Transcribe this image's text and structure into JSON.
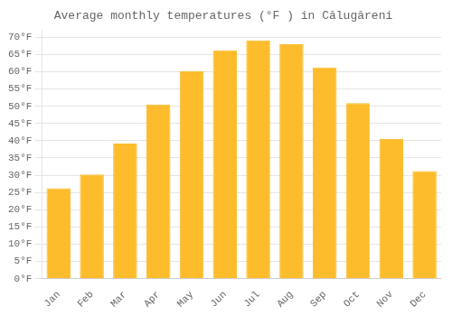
{
  "chart_data": {
    "type": "bar",
    "title": "Average monthly temperatures (°F ) in Călugăreni",
    "categories": [
      "Jan",
      "Feb",
      "Mar",
      "Apr",
      "May",
      "Jun",
      "Jul",
      "Aug",
      "Sep",
      "Oct",
      "Nov",
      "Dec"
    ],
    "values": [
      26.2,
      30.2,
      39.2,
      50.5,
      60.1,
      66.2,
      69.1,
      68.0,
      61.2,
      50.9,
      40.5,
      31.2
    ],
    "color": "#FDBC2C",
    "ylim": [
      0,
      72
    ],
    "yticks": [
      {
        "value": 0,
        "label": "0°F"
      },
      {
        "value": 5,
        "label": "5°F"
      },
      {
        "value": 10,
        "label": "10°F"
      },
      {
        "value": 15,
        "label": "15°F"
      },
      {
        "value": 20,
        "label": "20°F"
      },
      {
        "value": 25,
        "label": "25°F"
      },
      {
        "value": 30,
        "label": "30°F"
      },
      {
        "value": 35,
        "label": "35°F"
      },
      {
        "value": 40,
        "label": "40°F"
      },
      {
        "value": 45,
        "label": "45°F"
      },
      {
        "value": 50,
        "label": "50°F"
      },
      {
        "value": 55,
        "label": "55°F"
      },
      {
        "value": 60,
        "label": "60°F"
      },
      {
        "value": 65,
        "label": "65°F"
      },
      {
        "value": 70,
        "label": "70°F"
      }
    ],
    "grid": true
  }
}
